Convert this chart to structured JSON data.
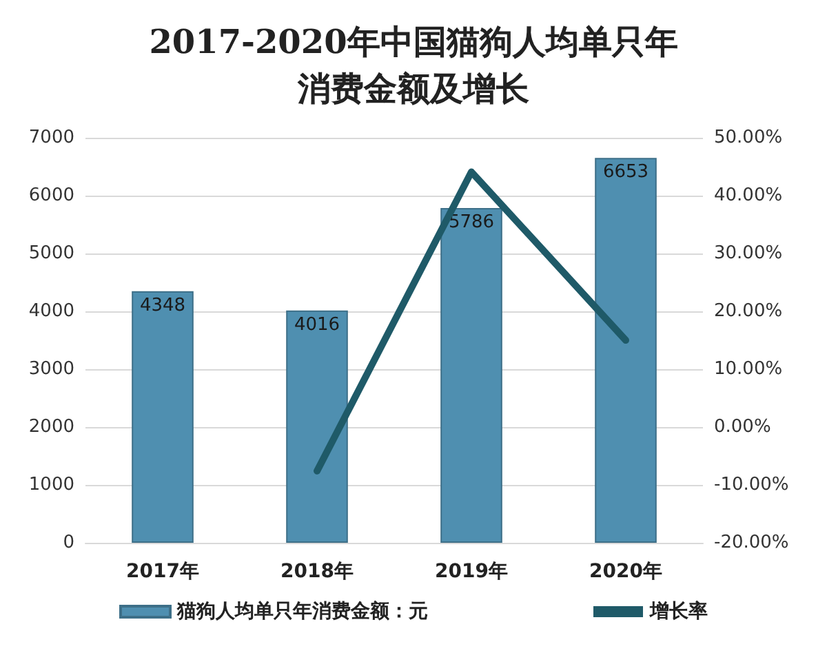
{
  "chart_data": {
    "type": "bar",
    "title": "2017-2020年中国猫狗人均单只年消费金额及增长",
    "categories": [
      "2017年",
      "2018年",
      "2019年",
      "2020年"
    ],
    "series": [
      {
        "name": "猫狗人均单只年消费金额：元",
        "color": "#4f8fb0",
        "values": [
          4348,
          4016,
          5786,
          6653
        ],
        "value_labels": [
          "4348",
          "4016",
          "5786",
          "6653"
        ]
      },
      {
        "name": "增长率",
        "type": "line",
        "axis": "y2",
        "color": "#1f5a68",
        "values": [
          null,
          -7.6,
          44.1,
          15.0
        ]
      }
    ],
    "ylim": [
      0,
      7000
    ],
    "yticks": [
      0,
      1000,
      2000,
      3000,
      4000,
      5000,
      6000,
      7000
    ],
    "y2lim": [
      -20,
      50
    ],
    "y2ticks": [
      {
        "value": -20,
        "label": "-20.00%"
      },
      {
        "value": -10,
        "label": "-10.00%"
      },
      {
        "value": 0,
        "label": "0.00%"
      },
      {
        "value": 10,
        "label": "10.00%"
      },
      {
        "value": 20,
        "label": "20.00%"
      },
      {
        "value": 30,
        "label": "30.00%"
      },
      {
        "value": 40,
        "label": "40.00%"
      },
      {
        "value": 50,
        "label": "50.00%"
      }
    ],
    "grid": "y",
    "legend": "bottom",
    "marker": "none"
  }
}
